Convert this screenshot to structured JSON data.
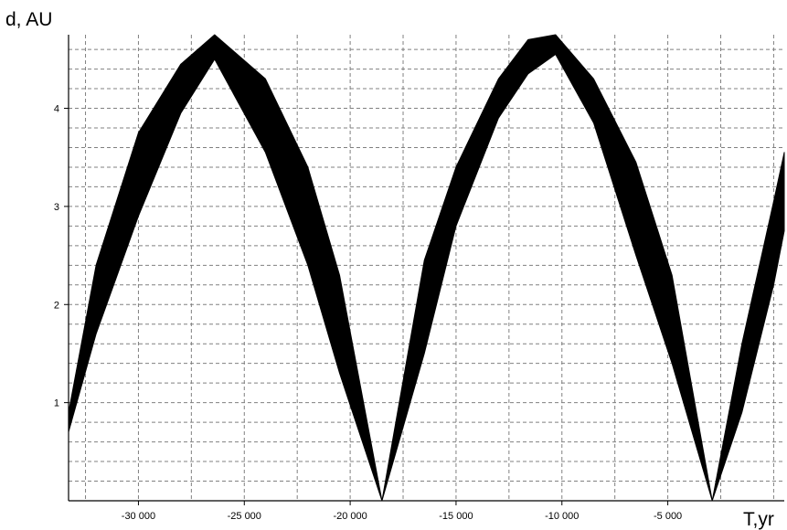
{
  "chart_data": {
    "type": "area",
    "xlabel": "T,yr",
    "ylabel": "d, AU",
    "xlim": [
      -33300,
      500
    ],
    "ylim": [
      0,
      4.75
    ],
    "x_ticks": [
      -30000,
      -25000,
      -20000,
      -15000,
      -10000,
      -5000
    ],
    "x_tick_labels": [
      "-30 000",
      "-25 000",
      "-20 000",
      "-15 000",
      "-10 000",
      "-5 000"
    ],
    "y_ticks": [
      1,
      2,
      3,
      4
    ],
    "y_tick_labels": [
      "1",
      "2",
      "3",
      "4"
    ],
    "grid": true,
    "fill_color": "#000000",
    "series": [
      {
        "x": [
          -33300,
          -32000,
          -30000,
          -28000,
          -26400,
          -24000,
          -22000,
          -20500,
          -18500,
          -16500,
          -15000,
          -13000,
          -11600,
          -10300,
          -8500,
          -6500,
          -4800,
          -2900,
          -1500,
          0,
          500
        ],
        "upper": [
          0.9,
          2.4,
          3.75,
          4.45,
          4.75,
          4.3,
          3.4,
          2.3,
          0.0,
          2.45,
          3.4,
          4.3,
          4.7,
          4.75,
          4.3,
          3.45,
          2.3,
          0.0,
          1.6,
          3.05,
          3.55
        ],
        "lower": [
          0.7,
          1.7,
          2.9,
          3.95,
          4.5,
          3.55,
          2.4,
          1.3,
          0.0,
          1.5,
          2.8,
          3.9,
          4.35,
          4.55,
          3.85,
          2.5,
          1.4,
          0.0,
          0.9,
          2.2,
          2.75
        ]
      }
    ]
  }
}
